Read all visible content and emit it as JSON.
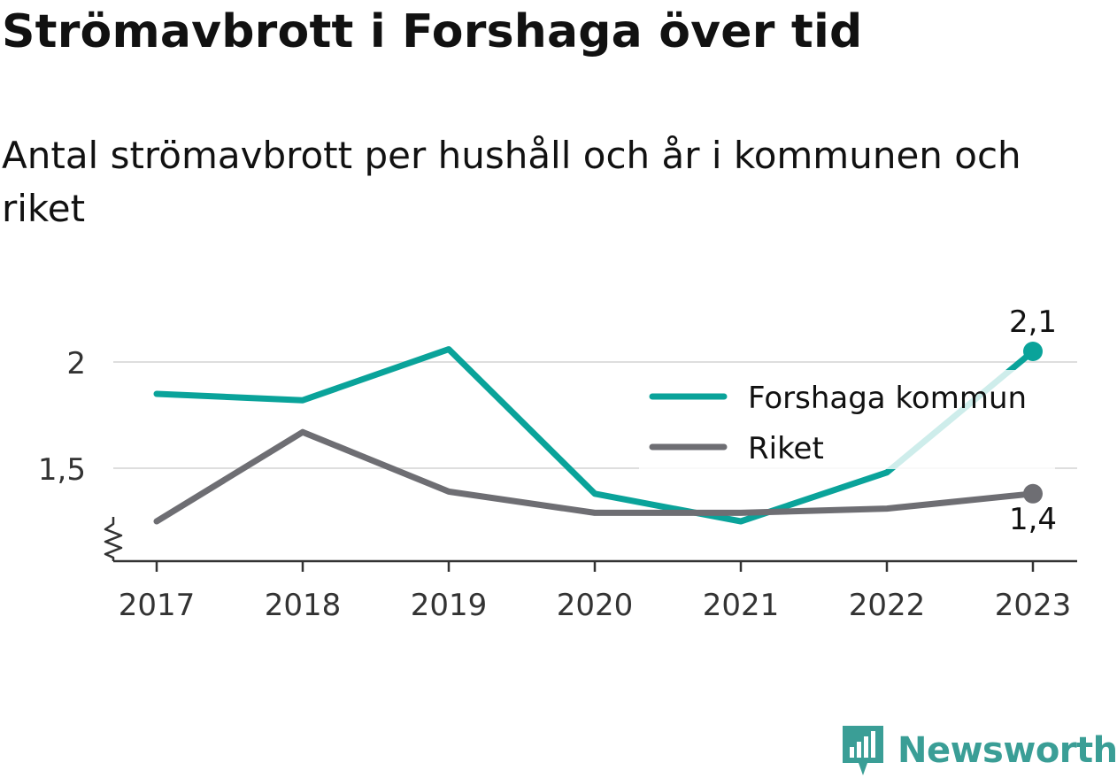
{
  "header": {
    "title": "Strömavbrott i Forshaga över tid",
    "subtitle": "Antal strömavbrott per hushåll och år i kommunen och riket"
  },
  "brand": {
    "name": "Newsworthy",
    "icon": "newsworthy-logo-icon",
    "color": "#3a9e96"
  },
  "chart_data": {
    "type": "line",
    "x": [
      "2017",
      "2018",
      "2019",
      "2020",
      "2021",
      "2022",
      "2023"
    ],
    "yticks": [
      {
        "value": 1.5,
        "label": "1,5"
      },
      {
        "value": 2,
        "label": "2"
      }
    ],
    "ylim": [
      1.06,
      2.25
    ],
    "axis_break": true,
    "grid": true,
    "legend_position": "right",
    "series": [
      {
        "name": "Forshaga kommun",
        "color": "#0aa39a",
        "values": [
          1.85,
          1.82,
          2.06,
          1.38,
          1.25,
          1.48,
          2.05
        ],
        "end_label": "2,1"
      },
      {
        "name": "Riket",
        "color": "#6e6e73",
        "values": [
          1.25,
          1.67,
          1.39,
          1.29,
          1.29,
          1.31,
          1.38
        ],
        "end_label": "1,4"
      }
    ]
  }
}
